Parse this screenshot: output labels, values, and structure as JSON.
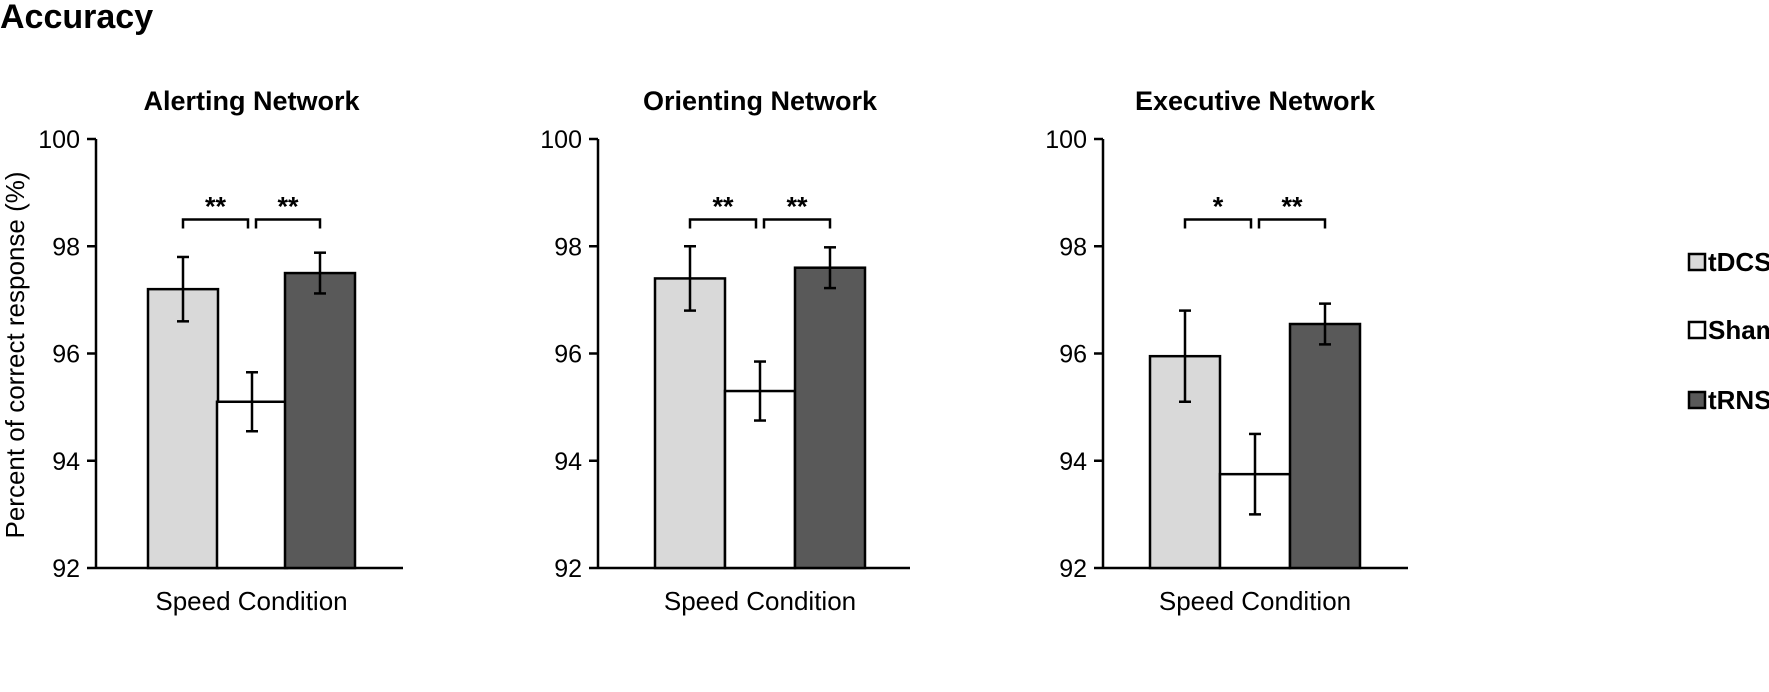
{
  "figure_title": "Accuracy",
  "chart_data": [
    {
      "type": "bar",
      "title": "Alerting Network",
      "categories": [
        "Speed Condition"
      ],
      "xlabel": "Speed Condition",
      "ylabel": "Percent of correct response (%)",
      "ylim": [
        92,
        100
      ],
      "yticks": [
        92,
        94,
        96,
        98,
        100
      ],
      "series": [
        {
          "name": "tDCS",
          "values": [
            97.2
          ],
          "error": [
            0.6
          ]
        },
        {
          "name": "Sham",
          "values": [
            95.1
          ],
          "error": [
            0.55
          ]
        },
        {
          "name": "tRNS",
          "values": [
            97.5
          ],
          "error": [
            0.38
          ]
        }
      ],
      "significance": [
        {
          "from": "tDCS",
          "to": "Sham",
          "label": "**",
          "y": 98.5
        },
        {
          "from": "Sham",
          "to": "tRNS",
          "label": "**",
          "y": 98.5
        }
      ],
      "grid": false
    },
    {
      "type": "bar",
      "title": "Orienting Network",
      "categories": [
        "Speed Condition"
      ],
      "xlabel": "Speed Condition",
      "ylabel": "",
      "ylim": [
        92,
        100
      ],
      "yticks": [
        92,
        94,
        96,
        98,
        100
      ],
      "series": [
        {
          "name": "tDCS",
          "values": [
            97.4
          ],
          "error": [
            0.6
          ]
        },
        {
          "name": "Sham",
          "values": [
            95.3
          ],
          "error": [
            0.55
          ]
        },
        {
          "name": "tRNS",
          "values": [
            97.6
          ],
          "error": [
            0.38
          ]
        }
      ],
      "significance": [
        {
          "from": "tDCS",
          "to": "Sham",
          "label": "**",
          "y": 98.5
        },
        {
          "from": "Sham",
          "to": "tRNS",
          "label": "**",
          "y": 98.5
        }
      ],
      "grid": false
    },
    {
      "type": "bar",
      "title": "Executive Network",
      "categories": [
        "Speed Condition"
      ],
      "xlabel": "Speed Condition",
      "ylabel": "",
      "ylim": [
        92,
        100
      ],
      "yticks": [
        92,
        94,
        96,
        98,
        100
      ],
      "series": [
        {
          "name": "tDCS",
          "values": [
            95.95
          ],
          "error": [
            0.85
          ]
        },
        {
          "name": "Sham",
          "values": [
            93.75
          ],
          "error": [
            0.75
          ]
        },
        {
          "name": "tRNS",
          "values": [
            96.55
          ],
          "error": [
            0.38
          ]
        }
      ],
      "significance": [
        {
          "from": "tDCS",
          "to": "Sham",
          "label": "*",
          "y": 98.5
        },
        {
          "from": "Sham",
          "to": "tRNS",
          "label": "**",
          "y": 98.5
        }
      ],
      "grid": false
    }
  ],
  "legend": {
    "placement": "right",
    "items": [
      {
        "name": "tDCS",
        "color": "#d9d9d9"
      },
      {
        "name": "Sham",
        "color": "#ffffff"
      },
      {
        "name": "tRNS",
        "color": "#595959"
      }
    ]
  },
  "colors": {
    "tDCS": "#d9d9d9",
    "Sham": "#ffffff",
    "tRNS": "#595959",
    "stroke": "#000000"
  }
}
